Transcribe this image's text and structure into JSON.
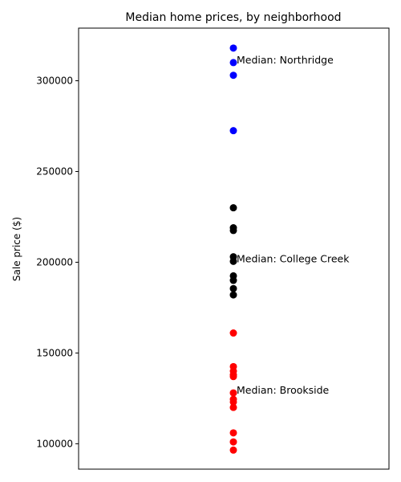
{
  "chart_data": {
    "type": "scatter",
    "title": "Median home prices, by neighborhood",
    "xlabel": "",
    "ylabel": "Sale price ($)",
    "ylim": [
      86000,
      329000
    ],
    "yticks": [
      100000,
      150000,
      200000,
      250000,
      300000
    ],
    "grid": false,
    "series": [
      {
        "color": "#0000ff",
        "values": [
          318000,
          310000,
          303000,
          272500
        ]
      },
      {
        "color": "#000000",
        "values": [
          230000,
          219000,
          217500,
          203000,
          200500,
          192500,
          190000,
          185500,
          182000
        ]
      },
      {
        "color": "#ff0000",
        "values": [
          161000,
          142500,
          140000,
          138000,
          137000,
          128000,
          124500,
          123000,
          120000,
          106000,
          101000,
          96500
        ]
      }
    ],
    "annotations": [
      {
        "text": "Median: Northridge",
        "y": 310000
      },
      {
        "text": "Median: College Creek",
        "y": 200500
      },
      {
        "text": "Median: Brookside",
        "y": 128000
      }
    ]
  }
}
